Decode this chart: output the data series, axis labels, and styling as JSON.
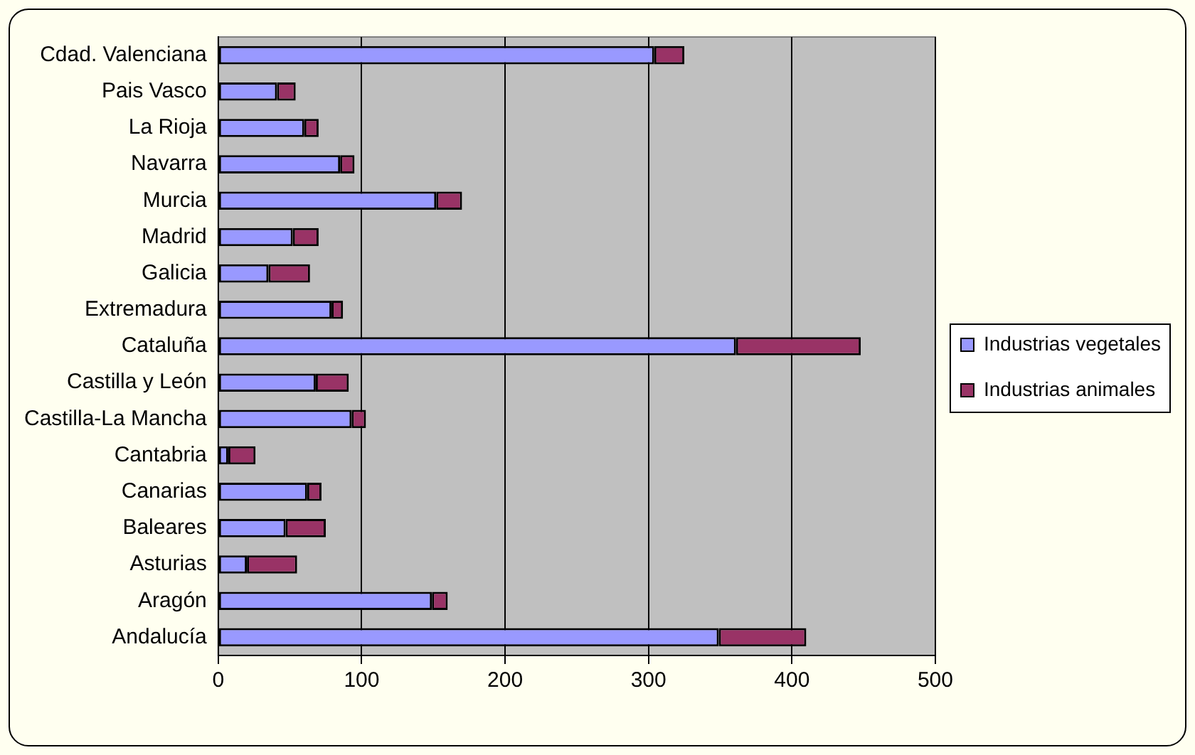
{
  "chart_data": {
    "type": "bar",
    "orientation": "horizontal",
    "stacked": true,
    "categories": [
      "Cdad. Valenciana",
      "Pais Vasco",
      "La Rioja",
      "Navarra",
      "Murcia",
      "Madrid",
      "Galicia",
      "Extremadura",
      "Cataluña",
      "Castilla y León",
      "Castilla-La Mancha",
      "Cantabria",
      "Canarias",
      "Baleares",
      "Asturias",
      "Aragón",
      "Andalucía"
    ],
    "series": [
      {
        "name": "Industrias vegetales",
        "color": "#9999ff",
        "values": [
          304,
          41,
          60,
          85,
          152,
          52,
          35,
          79,
          361,
          68,
          93,
          7,
          62,
          47,
          20,
          149,
          349
        ]
      },
      {
        "name": "Industrias animales",
        "color": "#993366",
        "values": [
          21,
          13,
          10,
          10,
          18,
          18,
          29,
          8,
          87,
          23,
          10,
          19,
          10,
          28,
          35,
          11,
          61
        ]
      }
    ],
    "xlim": [
      0,
      500
    ],
    "xticks": [
      0,
      100,
      200,
      300,
      400,
      500
    ],
    "grid": "x",
    "legend": "right"
  }
}
